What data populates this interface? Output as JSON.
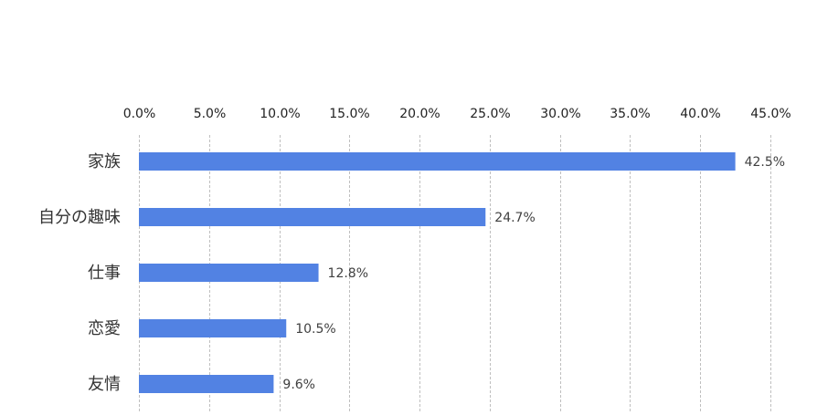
{
  "chart_data": {
    "type": "bar",
    "orientation": "horizontal",
    "categories": [
      "家族",
      "自分の趣味",
      "仕事",
      "恋愛",
      "友情"
    ],
    "values": [
      42.5,
      24.7,
      12.8,
      10.5,
      9.6
    ],
    "data_labels": [
      "42.5%",
      "24.7%",
      "12.8%",
      "10.5%",
      "9.6%"
    ],
    "title": "",
    "xlabel": "",
    "ylabel": "",
    "xlim": [
      0,
      45
    ],
    "x_ticks": [
      0,
      5,
      10,
      15,
      20,
      25,
      30,
      35,
      40,
      45
    ],
    "x_tick_labels": [
      "0.0%",
      "5.0%",
      "10.0%",
      "15.0%",
      "20.0%",
      "25.0%",
      "30.0%",
      "35.0%",
      "40.0%",
      "45.0%"
    ],
    "x_axis_position": "top",
    "grid": true,
    "grid_style": "dashed",
    "legend": "none",
    "colors": {
      "bar": "#5282E3",
      "grid": "#BFBFBF",
      "text": "#222222"
    }
  }
}
